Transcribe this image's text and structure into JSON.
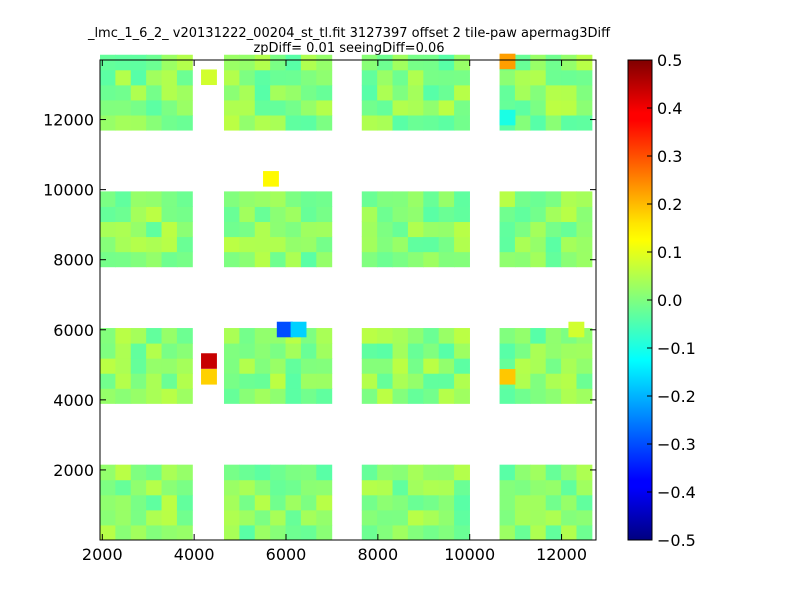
{
  "chart_data": {
    "type": "heatmap",
    "title_lines": [
      "_lmc_1_6_2_ v20131222_00204_st_tl.fit 3127397 offset 2 tile-paw apermag3Diff",
      "zpDiff= 0.01 seeingDiff=0.06"
    ],
    "xlabel": "",
    "ylabel": "",
    "xlim": [
      1950,
      12750
    ],
    "ylim": [
      0,
      13700
    ],
    "x_ticks": [
      2000,
      4000,
      6000,
      8000,
      10000,
      12000
    ],
    "y_ticks": [
      2000,
      4000,
      6000,
      8000,
      10000,
      12000
    ],
    "grid": false,
    "colorbar": {
      "colormap": "jet",
      "vmin": -0.5,
      "vmax": 0.5,
      "ticks": [
        0.5,
        0.4,
        0.3,
        0.2,
        0.1,
        0.0,
        -0.1,
        -0.2,
        -0.3,
        -0.4,
        -0.5
      ],
      "tick_labels": [
        "0.5",
        "0.4",
        "0.3",
        "0.2",
        "0.1",
        "0.0",
        "−0.1",
        "−0.2",
        "−0.3",
        "−0.4",
        "−0.5"
      ]
    },
    "cell_width": 335,
    "cell_height": 430,
    "column_groups": [
      {
        "x_start": 1950,
        "columns": 6
      },
      {
        "x_start": 4650,
        "columns": 7
      },
      {
        "x_start": 7650,
        "columns": 7
      },
      {
        "x_start": 10650,
        "columns": 6
      }
    ],
    "row_groups": [
      {
        "y_start": 0,
        "rows": 5
      },
      {
        "y_start": 3900,
        "rows": 5
      },
      {
        "y_start": 7800,
        "rows": 5
      },
      {
        "y_start": 11700,
        "rows": 5
      }
    ],
    "notable_cells": [
      {
        "x": 4150,
        "y": 4900,
        "value": 0.43
      },
      {
        "x": 4150,
        "y": 4450,
        "value": 0.17
      },
      {
        "x": 10650,
        "y": 4450,
        "value": 0.18
      },
      {
        "x": 10650,
        "y": 13450,
        "value": 0.22
      },
      {
        "x": 5500,
        "y": 10100,
        "value": 0.13
      },
      {
        "x": 5800,
        "y": 5800,
        "value": -0.3
      },
      {
        "x": 6100,
        "y": 5800,
        "value": -0.17
      },
      {
        "x": 10650,
        "y": 11850,
        "value": -0.1
      },
      {
        "x": 12150,
        "y": 5800,
        "value": 0.08
      },
      {
        "x": 4150,
        "y": 13000,
        "value": 0.08
      }
    ],
    "typical_value_range": [
      -0.04,
      0.06
    ]
  }
}
